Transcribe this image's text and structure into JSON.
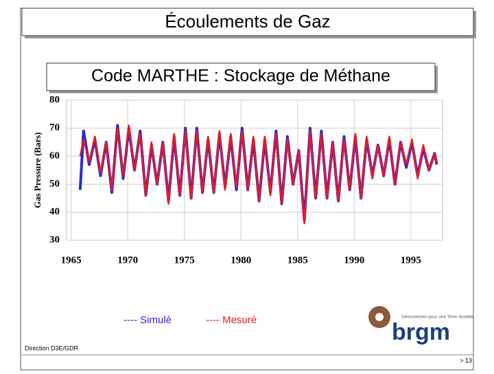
{
  "slide": {
    "title": "Écoulements de Gaz",
    "footer": "Direction D3E/GDR",
    "page": "> 13",
    "logo_text": "brgm",
    "logo_tagline": "Géosciences pour une Terre durable"
  },
  "chart_data": {
    "type": "line",
    "title": "Code MARTHE : Stockage de Méthane",
    "y_label": "Gas Pressure (Bars)",
    "x": [
      1965.8,
      1966.1,
      1966.6,
      1967.1,
      1967.6,
      1968.1,
      1968.6,
      1969.1,
      1969.6,
      1970.1,
      1970.6,
      1971.1,
      1971.6,
      1972.1,
      1972.6,
      1973.1,
      1973.6,
      1974.1,
      1974.6,
      1975.1,
      1975.6,
      1976.1,
      1976.6,
      1977.1,
      1977.6,
      1978.1,
      1978.6,
      1979.1,
      1979.6,
      1980.1,
      1980.6,
      1981.1,
      1981.6,
      1982.1,
      1982.6,
      1983.1,
      1983.6,
      1984.1,
      1984.6,
      1985.1,
      1985.6,
      1986.1,
      1986.6,
      1987.1,
      1987.6,
      1988.1,
      1988.6,
      1989.1,
      1989.6,
      1990.1,
      1990.6,
      1991.1,
      1991.6,
      1992.1,
      1992.6,
      1993.1,
      1993.6,
      1994.1,
      1994.6,
      1995.1,
      1995.6,
      1996.1,
      1996.6,
      1997.1,
      1997.3
    ],
    "series": [
      {
        "name": "---- Simulé",
        "color": "#2a2ad0",
        "values": [
          48,
          69,
          57,
          66,
          53,
          65,
          47,
          71,
          52,
          70,
          55,
          69,
          46,
          64,
          50,
          65,
          44,
          67,
          46,
          70,
          45,
          70,
          47,
          66,
          47,
          68,
          49,
          67,
          48,
          70,
          48,
          66,
          44,
          66,
          47,
          69,
          43,
          67,
          50,
          62,
          37,
          70,
          45,
          69,
          45,
          65,
          44,
          67,
          48,
          67,
          45,
          66,
          53,
          64,
          53,
          66,
          50,
          65,
          56,
          65,
          53,
          63,
          55,
          61,
          57
        ]
      },
      {
        "name": "---- Mesuré",
        "color": "#f01818",
        "values": [
          60,
          66,
          58,
          67,
          54,
          65,
          48,
          70,
          53,
          71,
          55,
          68,
          46,
          65,
          50,
          65,
          43,
          68,
          46,
          69,
          45,
          69,
          47,
          67,
          47,
          69,
          48,
          68,
          49,
          69,
          48,
          67,
          44,
          67,
          46,
          68,
          43,
          66,
          50,
          62,
          36,
          69,
          45,
          68,
          45,
          65,
          44,
          66,
          48,
          68,
          45,
          67,
          52,
          64,
          53,
          67,
          50,
          65,
          57,
          66,
          52,
          64,
          55,
          61,
          57
        ]
      }
    ],
    "xlim": [
      1964.6,
      1997.8
    ],
    "xticks": [
      1965,
      1970,
      1975,
      1980,
      1985,
      1990,
      1995
    ],
    "ylim": [
      30,
      80
    ],
    "yticks": [
      30,
      40,
      50,
      60,
      70,
      80
    ],
    "grid": true
  }
}
